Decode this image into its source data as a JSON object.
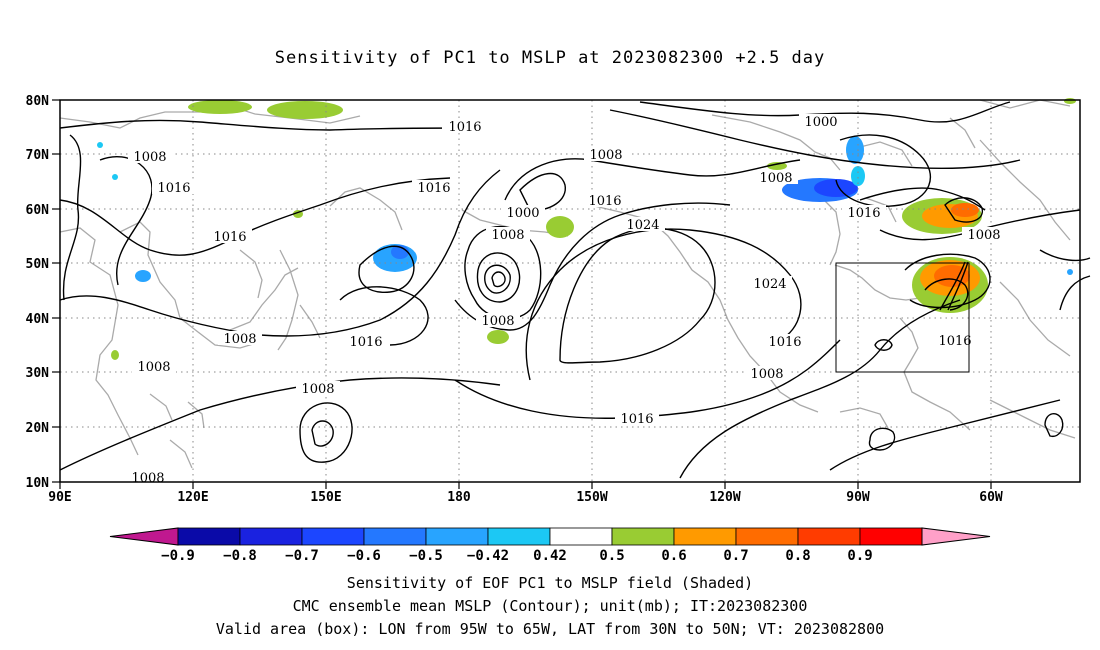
{
  "title": "Sensitivity of PC1 to MSLP at 2023082300 +2.5 day",
  "lat_labels": [
    "80N",
    "70N",
    "60N",
    "50N",
    "40N",
    "30N",
    "20N",
    "10N"
  ],
  "lon_labels": [
    "90E",
    "120E",
    "150E",
    "180",
    "150W",
    "120W",
    "90W",
    "60W"
  ],
  "colorbar": {
    "colors": [
      "#c0188f",
      "#0a0aa8",
      "#1a22e0",
      "#1c46ff",
      "#2478ff",
      "#28a4ff",
      "#1cc8f4",
      "#ffffff",
      "#99cc33",
      "#ff9a00",
      "#ff6c00",
      "#ff3c00",
      "#ff0000",
      "#ffa0c8"
    ],
    "labels": [
      "−0.9",
      "−0.8",
      "−0.7",
      "−0.6",
      "−0.5",
      "−0.42",
      "0.42",
      "0.5",
      "0.6",
      "0.7",
      "0.8",
      "0.9"
    ]
  },
  "contour_labels": [
    "1016",
    "1008",
    "1016",
    "1016",
    "1016",
    "1008",
    "1000",
    "1016",
    "1008",
    "1024",
    "1000",
    "1008",
    "1016",
    "1008",
    "1008",
    "1024",
    "1008",
    "1016",
    "1008",
    "1016",
    "1016",
    "1008",
    "1008"
  ],
  "valid_box": {
    "lon_from": "95W",
    "lon_to": "65W",
    "lat_from": "30N",
    "lat_to": "50N"
  },
  "captions": {
    "line1": "Sensitivity of EOF PC1 to MSLP field (Shaded)",
    "line2": "CMC ensemble mean MSLP (Contour); unit(mb); IT:2023082300",
    "line3": "Valid area (box): LON from 95W to 65W, LAT from 30N to 50N; VT: 2023082800"
  }
}
